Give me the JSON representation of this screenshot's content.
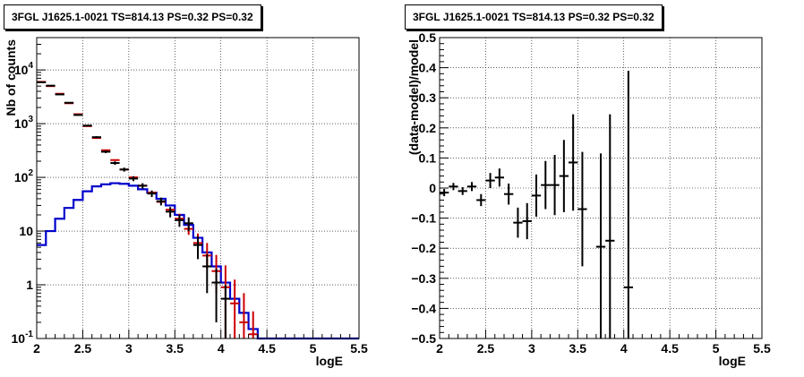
{
  "chart_data": [
    {
      "type": "line",
      "title": "3FGL J1625.1-0021 TS=814.13 PS=0.32 PS=0.32",
      "xlabel": "logE",
      "ylabel": "Nb of counts",
      "xlim": [
        2,
        5.5
      ],
      "ylim": [
        0.1,
        40000
      ],
      "yscale": "log",
      "grid": true,
      "x_ticks": [
        "2",
        "2.5",
        "3",
        "3.5",
        "4",
        "4.5",
        "5",
        "5.5"
      ],
      "y_ticks": [
        {
          "base": "10",
          "exp": "-1",
          "value": 0.1
        },
        {
          "base": "1",
          "exp": "",
          "value": 1
        },
        {
          "base": "10",
          "exp": "",
          "value": 10
        },
        {
          "base": "10",
          "exp": "2",
          "value": 100
        },
        {
          "base": "10",
          "exp": "3",
          "value": 1000
        },
        {
          "base": "10",
          "exp": "4",
          "value": 10000
        }
      ],
      "series": [
        {
          "kind": "histogram",
          "color": "#0000cc",
          "bin_width": 0.1,
          "x": [
            2.05,
            2.15,
            2.25,
            2.35,
            2.45,
            2.55,
            2.65,
            2.75,
            2.85,
            2.95,
            3.05,
            3.15,
            3.25,
            3.35,
            3.45,
            3.55,
            3.65,
            3.75,
            3.85,
            3.95,
            4.05,
            4.15,
            4.25,
            4.35,
            4.45,
            4.55,
            4.65,
            4.75,
            4.85,
            4.95,
            5.05,
            5.15,
            5.25,
            5.35,
            5.45
          ],
          "values": [
            5.5,
            10,
            17,
            27,
            38,
            55,
            68,
            74,
            78,
            76,
            70,
            60,
            52,
            40,
            30,
            20,
            13,
            7.5,
            4,
            2.2,
            1.1,
            0.55,
            0.3,
            0.15,
            0.1,
            0.1,
            0.1,
            0.1,
            0.1,
            0.1,
            0.1,
            0.1,
            0.1,
            0.1,
            0.1
          ]
        },
        {
          "kind": "markers",
          "color": "#cc0000",
          "x": [
            2.05,
            2.15,
            2.25,
            2.35,
            2.45,
            2.55,
            2.65,
            2.75,
            2.85,
            2.95,
            3.05,
            3.15,
            3.25,
            3.35,
            3.45,
            3.55,
            3.65,
            3.75,
            3.85,
            3.95,
            4.05,
            4.15,
            4.25,
            4.35
          ],
          "values": [
            6000,
            5000,
            3600,
            2400,
            1500,
            900,
            540,
            320,
            210,
            140,
            100,
            70,
            52,
            35,
            25,
            17,
            11,
            6,
            3.5,
            1.8,
            0.9,
            0.45,
            0.2,
            0.12
          ],
          "yerr_low": [
            0,
            0,
            0,
            0,
            0,
            0,
            0,
            0,
            0,
            0,
            0,
            0,
            0,
            0,
            0,
            3,
            2.5,
            2,
            1.5,
            1.1,
            0.8,
            0.4,
            0.18,
            0.1
          ],
          "yerr_high": [
            0,
            0,
            0,
            0,
            0,
            0,
            0,
            0,
            0,
            0,
            0,
            0,
            0,
            0,
            0,
            4,
            3.5,
            3,
            2.5,
            1.8,
            1.4,
            0.8,
            0.5,
            0.2
          ]
        },
        {
          "kind": "points",
          "color": "#000000",
          "x": [
            2.05,
            2.15,
            2.25,
            2.35,
            2.45,
            2.55,
            2.65,
            2.75,
            2.85,
            2.95,
            3.05,
            3.15,
            3.25,
            3.35,
            3.45,
            3.55,
            3.65,
            3.75,
            3.85,
            3.95,
            4.05
          ],
          "values": [
            5900,
            5100,
            3500,
            2450,
            1450,
            920,
            560,
            300,
            185,
            140,
            95,
            70,
            50,
            36,
            23,
            16,
            14,
            5.5,
            2.2,
            1.1,
            0.55
          ],
          "yerr_low": [
            80,
            70,
            60,
            50,
            40,
            30,
            24,
            17,
            14,
            12,
            10,
            8,
            7,
            6,
            5,
            4,
            4,
            2.5,
            1.5,
            0.9,
            0.45
          ],
          "yerr_high": [
            80,
            70,
            60,
            50,
            40,
            30,
            24,
            17,
            14,
            12,
            10,
            8,
            7,
            6,
            5,
            4,
            4,
            2.5,
            1.5,
            0.9,
            0.45
          ]
        }
      ]
    },
    {
      "type": "scatter",
      "title": "3FGL J1625.1-0021 TS=814.13 PS=0.32 PS=0.32",
      "xlabel": "logE",
      "ylabel": "(data-model)/model",
      "xlim": [
        2,
        5.5
      ],
      "ylim": [
        -0.5,
        0.5
      ],
      "grid": true,
      "x_ticks": [
        "2",
        "2.5",
        "3",
        "3.5",
        "4",
        "4.5",
        "5",
        "5.5"
      ],
      "y_ticks": [
        "-0.5",
        "-0.4",
        "-0.3",
        "-0.2",
        "-0.1",
        "0",
        "0.1",
        "0.2",
        "0.3",
        "0.4",
        "0.5"
      ],
      "series": [
        {
          "color": "#000000",
          "x": [
            2.05,
            2.15,
            2.25,
            2.35,
            2.45,
            2.55,
            2.65,
            2.75,
            2.85,
            2.95,
            3.05,
            3.15,
            3.25,
            3.35,
            3.45,
            3.55,
            3.75,
            3.85,
            4.05
          ],
          "values": [
            -0.015,
            0.005,
            -0.01,
            0.005,
            -0.04,
            0.025,
            0.035,
            -0.02,
            -0.115,
            -0.11,
            -0.025,
            0.01,
            0.01,
            0.04,
            0.085,
            -0.07,
            -0.195,
            -0.175,
            -0.33
          ],
          "yerr": [
            0.012,
            0.012,
            0.013,
            0.015,
            0.02,
            0.025,
            0.03,
            0.035,
            0.05,
            0.06,
            0.07,
            0.08,
            0.1,
            0.12,
            0.16,
            0.19,
            0.31,
            0.42,
            0.72
          ]
        }
      ]
    }
  ]
}
